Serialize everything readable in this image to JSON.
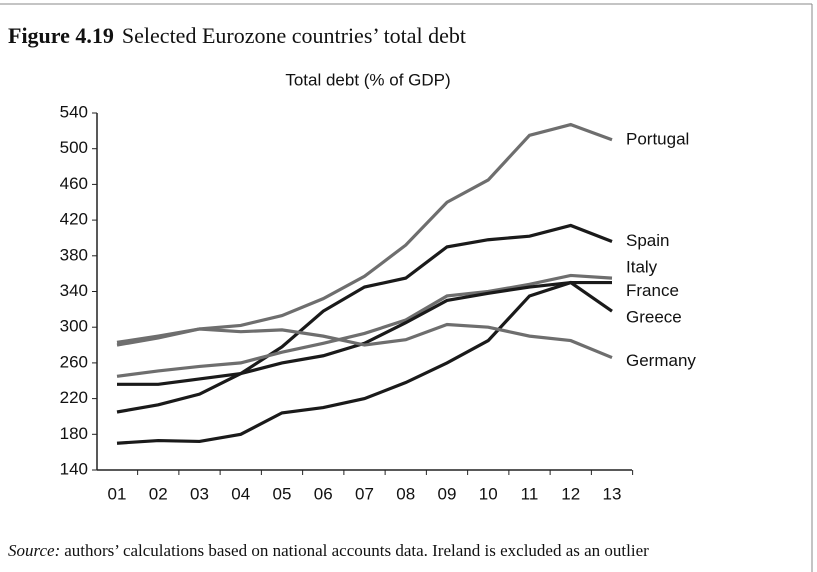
{
  "figure_label": "Figure 4.19",
  "figure_title": "Selected Eurozone countries’ total debt",
  "source_label": "Source:",
  "source": "authors’ calculations based on national accounts data. Ireland is excluded as an outlier",
  "chart_data": {
    "type": "line",
    "title": "Total debt (% of GDP)",
    "categories": [
      "01",
      "02",
      "03",
      "04",
      "05",
      "06",
      "07",
      "08",
      "09",
      "10",
      "11",
      "12",
      "13"
    ],
    "series": [
      {
        "name": "Portugal",
        "color": "#6e6e6e",
        "values": [
          280,
          288,
          298,
          302,
          313,
          332,
          357,
          392,
          440,
          465,
          515,
          527,
          510
        ]
      },
      {
        "name": "Spain",
        "color": "#1a1a1a",
        "values": [
          205,
          213,
          225,
          248,
          278,
          318,
          345,
          355,
          390,
          398,
          402,
          414,
          396
        ]
      },
      {
        "name": "Italy",
        "color": "#6e6e6e",
        "values": [
          245,
          251,
          256,
          260,
          272,
          282,
          293,
          308,
          335,
          340,
          348,
          358,
          355
        ]
      },
      {
        "name": "France",
        "color": "#1a1a1a",
        "values": [
          236,
          236,
          242,
          248,
          260,
          268,
          282,
          305,
          330,
          338,
          345,
          350,
          350
        ]
      },
      {
        "name": "Greece",
        "color": "#1a1a1a",
        "values": [
          170,
          173,
          172,
          180,
          204,
          210,
          220,
          238,
          260,
          285,
          335,
          350,
          318
        ]
      },
      {
        "name": "Germany",
        "color": "#6e6e6e",
        "values": [
          283,
          290,
          298,
          295,
          297,
          290,
          280,
          286,
          303,
          300,
          290,
          285,
          266
        ]
      }
    ],
    "ylim": [
      140,
      540
    ],
    "yticks": [
      140,
      180,
      220,
      260,
      300,
      340,
      380,
      420,
      460,
      500,
      540
    ],
    "grid": false
  }
}
